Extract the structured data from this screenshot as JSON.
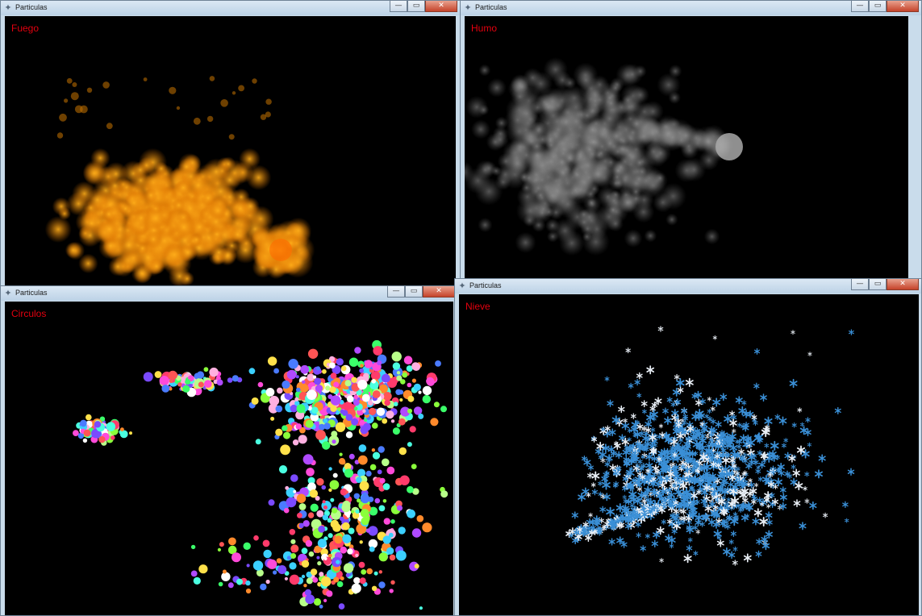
{
  "windows": {
    "fire": {
      "title": "Particulas",
      "label": "Fuego"
    },
    "smoke": {
      "title": "Particulas",
      "label": "Humo"
    },
    "circles": {
      "title": "Particulas",
      "label": "Circulos"
    },
    "snow": {
      "title": "Particulas",
      "label": "Nieve"
    }
  },
  "controls": {
    "minimize": "—",
    "maximize": "▭",
    "close": "✕"
  },
  "icons": {
    "app": "sparkle-icon",
    "snowflake": "snowflake-icon"
  },
  "colors": {
    "label": "#e4000f",
    "fire": "#ff9a00",
    "smoke": "#7d7d7d",
    "snow_blue": "#3a8fd6",
    "snow_white": "#e8eef5"
  }
}
